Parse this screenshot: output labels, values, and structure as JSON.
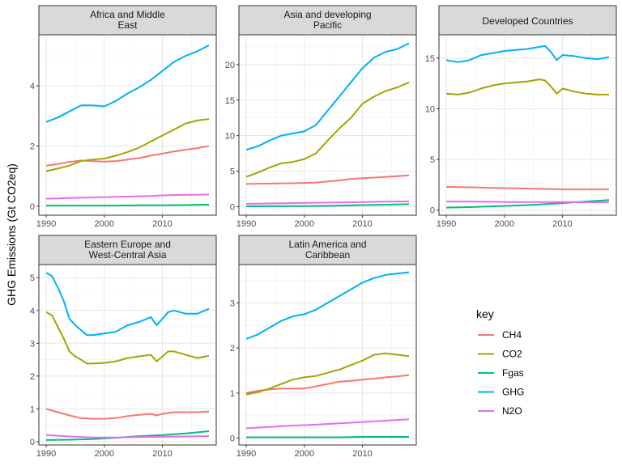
{
  "chart_data": {
    "type": "line",
    "ylabel": "GHG Emissions (Gt CO2eq)",
    "legend": {
      "title": "key",
      "placement": "right",
      "entries": [
        "CH4",
        "CO2",
        "Fgas",
        "GHG",
        "N2O"
      ]
    },
    "colors": {
      "CH4": "#F8766D",
      "CO2": "#A3A500",
      "Fgas": "#00BF7D",
      "GHG": "#00B0F6",
      "N2O": "#E76BF3"
    },
    "x_ticks": [
      1990,
      2000,
      2010
    ],
    "xlim": [
      1990,
      2018
    ],
    "grid": true,
    "panels": [
      {
        "title": "Africa and Middle\nEast",
        "ylim": [
          -0.3,
          5.7
        ],
        "y_ticks": [
          0,
          2,
          4
        ],
        "series": [
          {
            "name": "GHG",
            "x": [
              1990,
              1992,
              1994,
              1996,
              1998,
              2000,
              2002,
              2004,
              2006,
              2008,
              2010,
              2012,
              2014,
              2016,
              2018
            ],
            "y": [
              2.8,
              2.95,
              3.15,
              3.35,
              3.35,
              3.32,
              3.5,
              3.75,
              3.95,
              4.2,
              4.5,
              4.8,
              5.0,
              5.15,
              5.35
            ]
          },
          {
            "name": "CO2",
            "x": [
              1990,
              1992,
              1994,
              1996,
              1998,
              2000,
              2002,
              2004,
              2006,
              2008,
              2010,
              2012,
              2014,
              2016,
              2018
            ],
            "y": [
              1.17,
              1.25,
              1.35,
              1.5,
              1.55,
              1.58,
              1.68,
              1.8,
              1.95,
              2.15,
              2.35,
              2.55,
              2.75,
              2.85,
              2.9
            ]
          },
          {
            "name": "CH4",
            "x": [
              1990,
              1992,
              1994,
              1996,
              1998,
              2000,
              2002,
              2004,
              2006,
              2008,
              2010,
              2012,
              2014,
              2016,
              2018
            ],
            "y": [
              1.35,
              1.4,
              1.47,
              1.52,
              1.5,
              1.48,
              1.5,
              1.55,
              1.6,
              1.68,
              1.75,
              1.82,
              1.88,
              1.93,
              2.0
            ]
          },
          {
            "name": "N2O",
            "x": [
              1990,
              1992,
              1994,
              1996,
              1998,
              2000,
              2002,
              2004,
              2006,
              2008,
              2010,
              2012,
              2014,
              2016,
              2018
            ],
            "y": [
              0.25,
              0.26,
              0.27,
              0.28,
              0.29,
              0.3,
              0.31,
              0.32,
              0.33,
              0.34,
              0.36,
              0.37,
              0.38,
              0.38,
              0.39
            ]
          },
          {
            "name": "Fgas",
            "x": [
              1990,
              1994,
              1998,
              2002,
              2006,
              2010,
              2014,
              2018
            ],
            "y": [
              0.02,
              0.02,
              0.02,
              0.02,
              0.03,
              0.03,
              0.04,
              0.05
            ]
          }
        ]
      },
      {
        "title": "Asia and developing\nPacific",
        "ylim": [
          -1.2,
          24.2
        ],
        "y_ticks": [
          0,
          5,
          10,
          15,
          20
        ],
        "series": [
          {
            "name": "GHG",
            "x": [
              1990,
              1992,
              1994,
              1996,
              1998,
              2000,
              2002,
              2004,
              2006,
              2008,
              2010,
              2012,
              2014,
              2016,
              2018
            ],
            "y": [
              8.0,
              8.5,
              9.3,
              10.0,
              10.3,
              10.6,
              11.5,
              13.5,
              15.5,
              17.5,
              19.5,
              21.0,
              21.8,
              22.2,
              23.0
            ]
          },
          {
            "name": "CO2",
            "x": [
              1990,
              1992,
              1994,
              1996,
              1998,
              2000,
              2002,
              2004,
              2006,
              2008,
              2010,
              2012,
              2014,
              2016,
              2018
            ],
            "y": [
              4.2,
              4.8,
              5.5,
              6.1,
              6.3,
              6.7,
              7.5,
              9.3,
              11.0,
              12.5,
              14.5,
              15.5,
              16.3,
              16.8,
              17.5
            ]
          },
          {
            "name": "CH4",
            "x": [
              1990,
              1994,
              1998,
              2002,
              2006,
              2008,
              2010,
              2012,
              2014,
              2016,
              2018
            ],
            "y": [
              3.2,
              3.25,
              3.3,
              3.4,
              3.7,
              3.9,
              4.0,
              4.1,
              4.2,
              4.3,
              4.4
            ]
          },
          {
            "name": "N2O",
            "x": [
              1990,
              1994,
              1998,
              2002,
              2006,
              2010,
              2014,
              2018
            ],
            "y": [
              0.4,
              0.45,
              0.5,
              0.55,
              0.6,
              0.65,
              0.7,
              0.75
            ]
          },
          {
            "name": "Fgas",
            "x": [
              1990,
              1994,
              1998,
              2002,
              2006,
              2010,
              2014,
              2018
            ],
            "y": [
              0.05,
              0.06,
              0.08,
              0.1,
              0.15,
              0.22,
              0.28,
              0.35
            ]
          }
        ]
      },
      {
        "title": "Developed Countries",
        "ylim": [
          -0.5,
          17.3
        ],
        "y_ticks": [
          0,
          5,
          10,
          15
        ],
        "series": [
          {
            "name": "GHG",
            "x": [
              1990,
              1992,
              1994,
              1996,
              1998,
              2000,
              2002,
              2004,
              2006,
              2007,
              2008,
              2009,
              2010,
              2012,
              2014,
              2016,
              2018
            ],
            "y": [
              14.8,
              14.6,
              14.8,
              15.3,
              15.5,
              15.7,
              15.8,
              15.9,
              16.1,
              16.2,
              15.6,
              14.8,
              15.3,
              15.2,
              15.0,
              14.9,
              15.1
            ]
          },
          {
            "name": "CO2",
            "x": [
              1990,
              1992,
              1994,
              1996,
              1998,
              2000,
              2002,
              2004,
              2006,
              2007,
              2008,
              2009,
              2010,
              2012,
              2014,
              2016,
              2018
            ],
            "y": [
              11.5,
              11.4,
              11.6,
              12.0,
              12.3,
              12.5,
              12.6,
              12.7,
              12.9,
              12.8,
              12.2,
              11.5,
              12.0,
              11.7,
              11.5,
              11.4,
              11.4
            ]
          },
          {
            "name": "CH4",
            "x": [
              1990,
              1994,
              1998,
              2002,
              2006,
              2010,
              2014,
              2018
            ],
            "y": [
              2.3,
              2.25,
              2.2,
              2.15,
              2.1,
              2.05,
              2.05,
              2.05
            ]
          },
          {
            "name": "N2O",
            "x": [
              1990,
              1994,
              1998,
              2002,
              2006,
              2010,
              2014,
              2018
            ],
            "y": [
              0.85,
              0.85,
              0.82,
              0.8,
              0.8,
              0.8,
              0.78,
              0.78
            ]
          },
          {
            "name": "Fgas",
            "x": [
              1990,
              1994,
              1998,
              2002,
              2006,
              2010,
              2014,
              2018
            ],
            "y": [
              0.25,
              0.3,
              0.38,
              0.45,
              0.55,
              0.7,
              0.85,
              1.0
            ]
          }
        ]
      },
      {
        "title": "Eastern Europe and\nWest-Central Asia",
        "ylim": [
          -0.1,
          5.4
        ],
        "y_ticks": [
          0,
          1,
          2,
          3,
          4,
          5
        ],
        "series": [
          {
            "name": "GHG",
            "x": [
              1990,
              1991,
              1992,
              1993,
              1994,
              1995,
              1996,
              1997,
              1998,
              2000,
              2002,
              2004,
              2006,
              2008,
              2009,
              2010,
              2011,
              2012,
              2014,
              2016,
              2018
            ],
            "y": [
              5.15,
              5.05,
              4.7,
              4.3,
              3.75,
              3.55,
              3.4,
              3.25,
              3.25,
              3.3,
              3.35,
              3.55,
              3.65,
              3.8,
              3.55,
              3.75,
              3.95,
              4.0,
              3.9,
              3.9,
              4.05
            ]
          },
          {
            "name": "CO2",
            "x": [
              1990,
              1991,
              1992,
              1993,
              1994,
              1995,
              1996,
              1997,
              1998,
              2000,
              2002,
              2004,
              2006,
              2008,
              2009,
              2010,
              2011,
              2012,
              2014,
              2016,
              2018
            ],
            "y": [
              3.95,
              3.85,
              3.5,
              3.15,
              2.75,
              2.6,
              2.5,
              2.38,
              2.38,
              2.4,
              2.45,
              2.55,
              2.6,
              2.65,
              2.45,
              2.6,
              2.75,
              2.75,
              2.65,
              2.55,
              2.62
            ]
          },
          {
            "name": "CH4",
            "x": [
              1990,
              1992,
              1994,
              1996,
              1998,
              2000,
              2002,
              2004,
              2006,
              2008,
              2009,
              2010,
              2012,
              2014,
              2016,
              2018
            ],
            "y": [
              1.0,
              0.9,
              0.8,
              0.72,
              0.7,
              0.7,
              0.72,
              0.78,
              0.82,
              0.85,
              0.8,
              0.85,
              0.9,
              0.9,
              0.9,
              0.92
            ]
          },
          {
            "name": "N2O",
            "x": [
              1990,
              1994,
              1998,
              2002,
              2006,
              2010,
              2014,
              2018
            ],
            "y": [
              0.2,
              0.16,
              0.13,
              0.13,
              0.14,
              0.15,
              0.16,
              0.17
            ]
          },
          {
            "name": "Fgas",
            "x": [
              1990,
              1994,
              1998,
              2002,
              2006,
              2010,
              2014,
              2018
            ],
            "y": [
              0.05,
              0.06,
              0.08,
              0.12,
              0.17,
              0.2,
              0.25,
              0.32
            ]
          }
        ]
      },
      {
        "title": "Latin America and\nCaribbean",
        "ylim": [
          -0.15,
          3.85
        ],
        "y_ticks": [
          0,
          1,
          2,
          3
        ],
        "series": [
          {
            "name": "GHG",
            "x": [
              1990,
              1992,
              1994,
              1996,
              1998,
              2000,
              2002,
              2004,
              2006,
              2008,
              2010,
              2012,
              2014,
              2016,
              2018
            ],
            "y": [
              2.2,
              2.3,
              2.45,
              2.6,
              2.7,
              2.75,
              2.85,
              3.0,
              3.15,
              3.3,
              3.45,
              3.55,
              3.62,
              3.65,
              3.68
            ]
          },
          {
            "name": "CO2",
            "x": [
              1990,
              1992,
              1994,
              1996,
              1998,
              2000,
              2002,
              2004,
              2006,
              2008,
              2010,
              2012,
              2014,
              2016,
              2018
            ],
            "y": [
              0.97,
              1.02,
              1.1,
              1.2,
              1.3,
              1.35,
              1.38,
              1.45,
              1.52,
              1.62,
              1.72,
              1.85,
              1.88,
              1.85,
              1.82
            ]
          },
          {
            "name": "CH4",
            "x": [
              1990,
              1992,
              1994,
              1996,
              1998,
              2000,
              2002,
              2004,
              2006,
              2008,
              2010,
              2012,
              2014,
              2016,
              2018
            ],
            "y": [
              1.0,
              1.05,
              1.08,
              1.1,
              1.1,
              1.1,
              1.15,
              1.2,
              1.25,
              1.27,
              1.3,
              1.32,
              1.35,
              1.37,
              1.4
            ]
          },
          {
            "name": "N2O",
            "x": [
              1990,
              1994,
              1998,
              2002,
              2006,
              2010,
              2014,
              2018
            ],
            "y": [
              0.22,
              0.25,
              0.28,
              0.3,
              0.33,
              0.36,
              0.39,
              0.42
            ]
          },
          {
            "name": "Fgas",
            "x": [
              1990,
              1994,
              1998,
              2002,
              2006,
              2010,
              2014,
              2018
            ],
            "y": [
              0.02,
              0.02,
              0.02,
              0.02,
              0.02,
              0.03,
              0.03,
              0.03
            ]
          }
        ]
      }
    ]
  }
}
